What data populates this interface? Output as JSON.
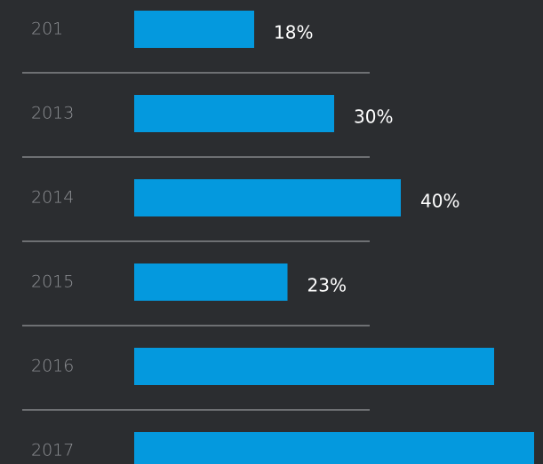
{
  "chart_data": {
    "type": "bar",
    "orientation": "horizontal",
    "categories": [
      "201",
      "2013",
      "2014",
      "2015",
      "2016",
      "2017"
    ],
    "values": [
      18,
      30,
      40,
      23,
      54,
      60
    ],
    "value_labels": [
      "18%",
      "30%",
      "40%",
      "23%",
      null,
      null
    ],
    "color": "#0499de",
    "xlim": [
      0,
      60
    ]
  }
}
